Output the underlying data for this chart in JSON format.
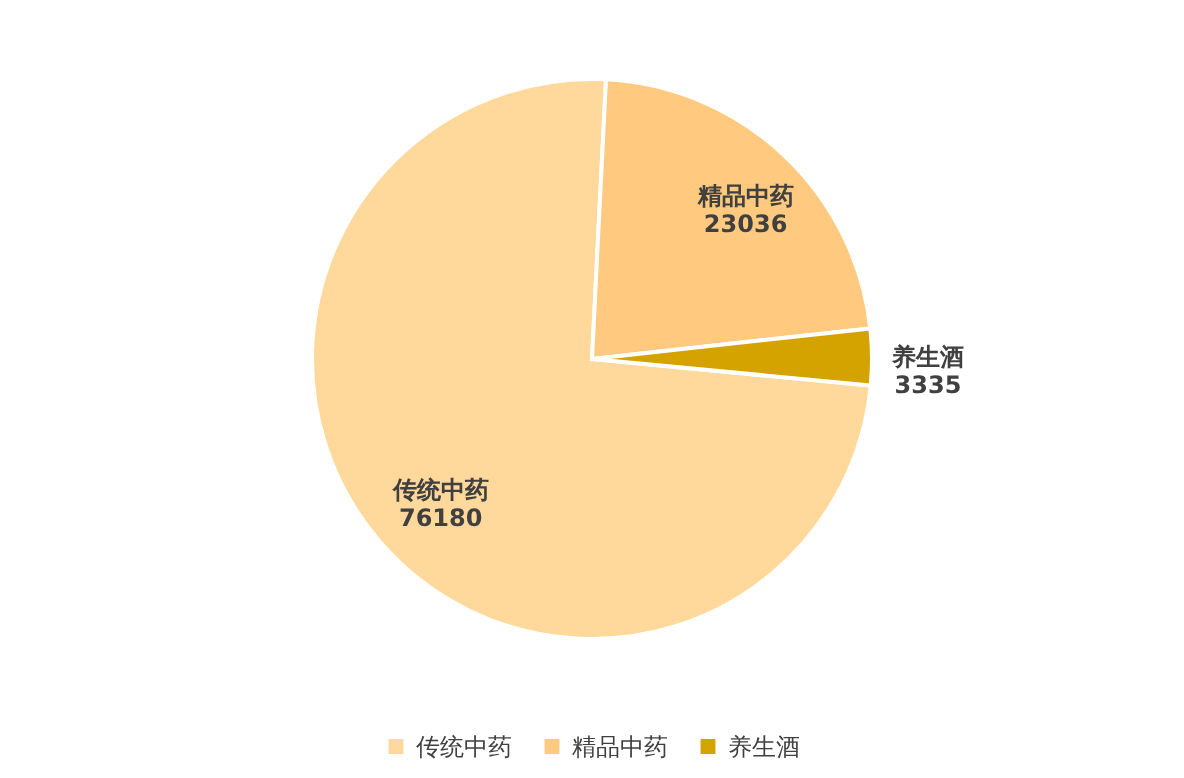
{
  "chart_data": {
    "type": "pie",
    "categories": [
      "传统中药",
      "精品中药",
      "养生酒"
    ],
    "values": [
      76180,
      23036,
      3335
    ],
    "colors": [
      "#ffd89b",
      "#ffca7f",
      "#d4a300"
    ],
    "data_labels": true,
    "legend": "bottom"
  }
}
